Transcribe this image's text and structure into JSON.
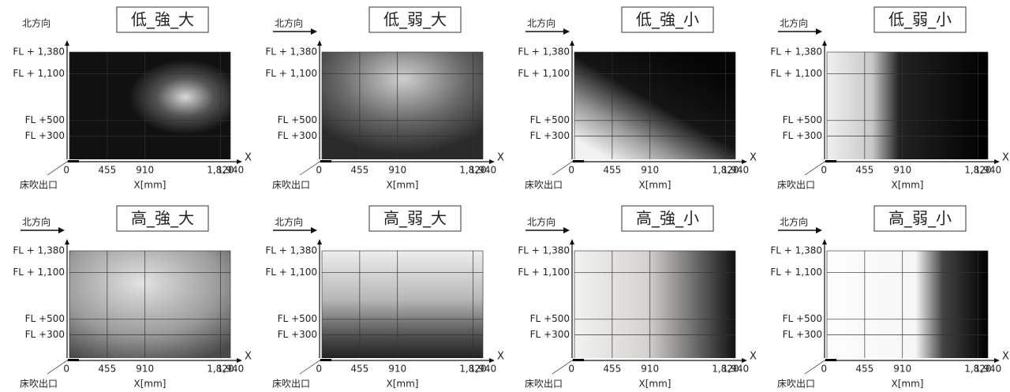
{
  "panels": [
    {
      "title": "低_強_大"
    },
    {
      "title": "低_弱_大"
    },
    {
      "title": "低_強_小"
    },
    {
      "title": "低_弱_小"
    },
    {
      "title": "高_強_大"
    },
    {
      "title": "高_弱_大"
    },
    {
      "title": "高_強_小"
    },
    {
      "title": "高_弱_小"
    }
  ],
  "axes": {
    "direction_label": "北方向",
    "outlet_label": "床吹出口",
    "x_axis_label": "X[mm]",
    "x_arrow_label": "X",
    "xlim": [
      0,
      1940
    ],
    "xticks": [
      {
        "value": 0,
        "label": "0"
      },
      {
        "value": 455,
        "label": "455"
      },
      {
        "value": 910,
        "label": "910"
      },
      {
        "value": 1820,
        "label": "1,820"
      },
      {
        "value": 1940,
        "label": "1,940"
      }
    ],
    "ylim": [
      0,
      1380
    ],
    "yticks": [
      {
        "value": 1380,
        "label": "FL + 1,380"
      },
      {
        "value": 1100,
        "label": "FL + 1,100"
      },
      {
        "value": 500,
        "label": "FL +500"
      },
      {
        "value": 300,
        "label": "FL +300"
      }
    ]
  }
}
